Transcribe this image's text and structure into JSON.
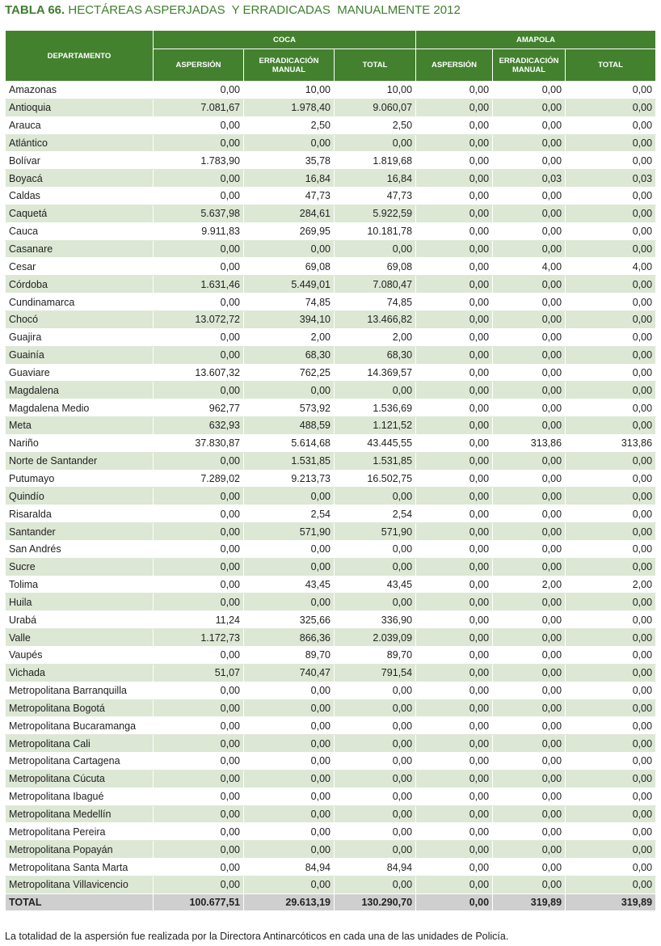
{
  "title": {
    "label": "TABLA 66.",
    "text": "HECTÁREAS ASPERJADAS  Y ERRADICADAS  MANUALMENTE 2012"
  },
  "table": {
    "header": {
      "department": "DEPARTAMENTO",
      "groups": [
        "COCA",
        "AMAPOLA"
      ],
      "columns": [
        "ASPERSIÓN",
        "ERRADICACIÓN MANUAL",
        "TOTAL",
        "ASPERSIÓN",
        "ERRADICACIÓN MANUAL",
        "TOTAL"
      ]
    },
    "rows": [
      [
        "Amazonas",
        "0,00",
        "10,00",
        "10,00",
        "0,00",
        "0,00",
        "0,00"
      ],
      [
        "Antioquia",
        "7.081,67",
        "1.978,40",
        "9.060,07",
        "0,00",
        "0,00",
        "0,00"
      ],
      [
        "Arauca",
        "0,00",
        "2,50",
        "2,50",
        "0,00",
        "0,00",
        "0,00"
      ],
      [
        "Atlántico",
        "0,00",
        "0,00",
        "0,00",
        "0,00",
        "0,00",
        "0,00"
      ],
      [
        "Bolívar",
        "1.783,90",
        "35,78",
        "1.819,68",
        "0,00",
        "0,00",
        "0,00"
      ],
      [
        "Boyacá",
        "0,00",
        "16,84",
        "16,84",
        "0,00",
        "0,03",
        "0,03"
      ],
      [
        "Caldas",
        "0,00",
        "47,73",
        "47,73",
        "0,00",
        "0,00",
        "0,00"
      ],
      [
        "Caquetá",
        "5.637,98",
        "284,61",
        "5.922,59",
        "0,00",
        "0,00",
        "0,00"
      ],
      [
        "Cauca",
        "9.911,83",
        "269,95",
        "10.181,78",
        "0,00",
        "0,00",
        "0,00"
      ],
      [
        "Casanare",
        "0,00",
        "0,00",
        "0,00",
        "0,00",
        "0,00",
        "0,00"
      ],
      [
        "Cesar",
        "0,00",
        "69,08",
        "69,08",
        "0,00",
        "4,00",
        "4,00"
      ],
      [
        "Córdoba",
        "1.631,46",
        "5.449,01",
        "7.080,47",
        "0,00",
        "0,00",
        "0,00"
      ],
      [
        "Cundinamarca",
        "0,00",
        "74,85",
        "74,85",
        "0,00",
        "0,00",
        "0,00"
      ],
      [
        "Chocó",
        "13.072,72",
        "394,10",
        "13.466,82",
        "0,00",
        "0,00",
        "0,00"
      ],
      [
        "Guajira",
        "0,00",
        "2,00",
        "2,00",
        "0,00",
        "0,00",
        "0,00"
      ],
      [
        "Guainía",
        "0,00",
        "68,30",
        "68,30",
        "0,00",
        "0,00",
        "0,00"
      ],
      [
        "Guaviare",
        "13.607,32",
        "762,25",
        "14.369,57",
        "0,00",
        "0,00",
        "0,00"
      ],
      [
        "Magdalena",
        "0,00",
        "0,00",
        "0,00",
        "0,00",
        "0,00",
        "0,00"
      ],
      [
        "Magdalena Medio",
        "962,77",
        "573,92",
        "1.536,69",
        "0,00",
        "0,00",
        "0,00"
      ],
      [
        "Meta",
        "632,93",
        "488,59",
        "1.121,52",
        "0,00",
        "0,00",
        "0,00"
      ],
      [
        "Nariño",
        "37.830,87",
        "5.614,68",
        "43.445,55",
        "0,00",
        "313,86",
        "313,86"
      ],
      [
        "Norte de Santander",
        "0,00",
        "1.531,85",
        "1.531,85",
        "0,00",
        "0,00",
        "0,00"
      ],
      [
        "Putumayo",
        "7.289,02",
        "9.213,73",
        "16.502,75",
        "0,00",
        "0,00",
        "0,00"
      ],
      [
        "Quindío",
        "0,00",
        "0,00",
        "0,00",
        "0,00",
        "0,00",
        "0,00"
      ],
      [
        "Risaralda",
        "0,00",
        "2,54",
        "2,54",
        "0,00",
        "0,00",
        "0,00"
      ],
      [
        "Santander",
        "0,00",
        "571,90",
        "571,90",
        "0,00",
        "0,00",
        "0,00"
      ],
      [
        "San Andrés",
        "0,00",
        "0,00",
        "0,00",
        "0,00",
        "0,00",
        "0,00"
      ],
      [
        "Sucre",
        "0,00",
        "0,00",
        "0,00",
        "0,00",
        "0,00",
        "0,00"
      ],
      [
        "Tolima",
        "0,00",
        "43,45",
        "43,45",
        "0,00",
        "2,00",
        "2,00"
      ],
      [
        "Huila",
        "0,00",
        "0,00",
        "0,00",
        "0,00",
        "0,00",
        "0,00"
      ],
      [
        "Urabá",
        "11,24",
        "325,66",
        "336,90",
        "0,00",
        "0,00",
        "0,00"
      ],
      [
        "Valle",
        "1.172,73",
        "866,36",
        "2.039,09",
        "0,00",
        "0,00",
        "0,00"
      ],
      [
        "Vaupés",
        "0,00",
        "89,70",
        "89,70",
        "0,00",
        "0,00",
        "0,00"
      ],
      [
        "Vichada",
        "51,07",
        "740,47",
        "791,54",
        "0,00",
        "0,00",
        "0,00"
      ],
      [
        "Metropolitana Barranquilla",
        "0,00",
        "0,00",
        "0,00",
        "0,00",
        "0,00",
        "0,00"
      ],
      [
        "Metropolitana Bogotá",
        "0,00",
        "0,00",
        "0,00",
        "0,00",
        "0,00",
        "0,00"
      ],
      [
        "Metropolitana Bucaramanga",
        "0,00",
        "0,00",
        "0,00",
        "0,00",
        "0,00",
        "0,00"
      ],
      [
        "Metropolitana Cali",
        "0,00",
        "0,00",
        "0,00",
        "0,00",
        "0,00",
        "0,00"
      ],
      [
        "Metropolitana Cartagena",
        "0,00",
        "0,00",
        "0,00",
        "0,00",
        "0,00",
        "0,00"
      ],
      [
        "Metropolitana Cúcuta",
        "0,00",
        "0,00",
        "0,00",
        "0,00",
        "0,00",
        "0,00"
      ],
      [
        "Metropolitana Ibagué",
        "0,00",
        "0,00",
        "0,00",
        "0,00",
        "0,00",
        "0,00"
      ],
      [
        "Metropolitana Medellín",
        "0,00",
        "0,00",
        "0,00",
        "0,00",
        "0,00",
        "0,00"
      ],
      [
        "Metropolitana Pereira",
        "0,00",
        "0,00",
        "0,00",
        "0,00",
        "0,00",
        "0,00"
      ],
      [
        "Metropolitana Popayán",
        "0,00",
        "0,00",
        "0,00",
        "0,00",
        "0,00",
        "0,00"
      ],
      [
        "Metropolitana Santa Marta",
        "0,00",
        "84,94",
        "84,94",
        "0,00",
        "0,00",
        "0,00"
      ],
      [
        "Metropolitana Villavicencio",
        "0,00",
        "0,00",
        "0,00",
        "0,00",
        "0,00",
        "0,00"
      ]
    ],
    "total": [
      "TOTAL",
      "100.677,51",
      "29.613,19",
      "130.290,70",
      "0,00",
      "319,89",
      "319,89"
    ]
  },
  "footnote": "La totalidad de la aspersión fue realizada por la Directora Antinarcóticos en cada una de las unidades de Policía."
}
